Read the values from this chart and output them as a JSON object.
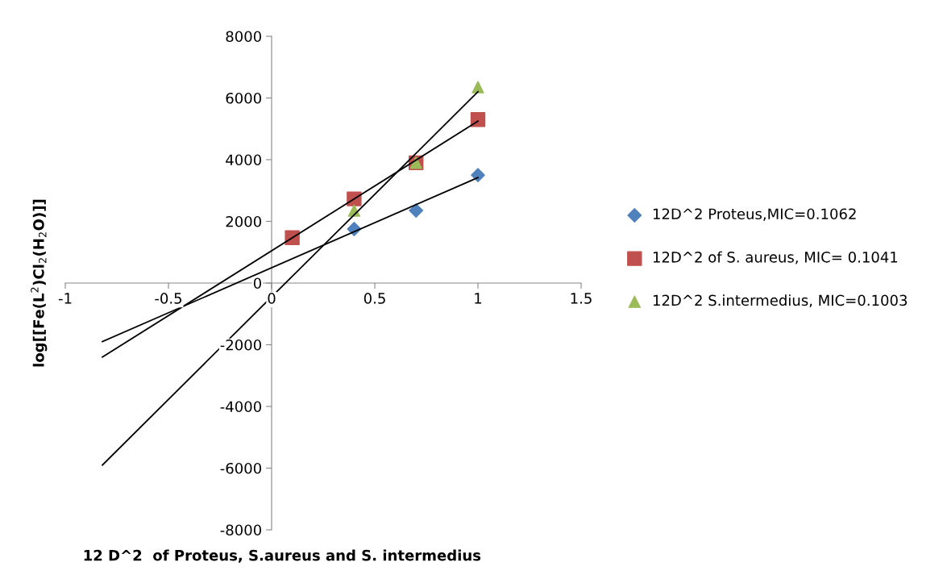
{
  "chart_data": {
    "type": "scatter",
    "xlabel": "12 D^2  of Proteus, S.aureus and S. intermedius",
    "ylabel": "log[[Fe(L$^{2}$)Cl$_{2}$(H$_{2}$O)]]",
    "xlim": [
      -1,
      1.5
    ],
    "xticks": [
      -1,
      -0.5,
      0,
      0.5,
      1,
      1.5
    ],
    "ylim": [
      -8000,
      8000
    ],
    "yticks": [
      -8000,
      -6000,
      -4000,
      -2000,
      0,
      2000,
      4000,
      6000,
      8000
    ],
    "grid": false,
    "legend": "right",
    "series": [
      {
        "name": "12D^2 Proteus,MIC=0.1062",
        "color": "#4f81bd",
        "marker": "diamond",
        "x": [
          0.4,
          0.7,
          1
        ],
        "values": [
          1750,
          2350,
          3500
        ]
      },
      {
        "name": "12D^2 of S. aureus, MIC= 0.1041",
        "color": "#c0504d",
        "marker": "square",
        "x": [
          0.1,
          0.4,
          0.7,
          1
        ],
        "values": [
          1470,
          2730,
          3900,
          5300
        ]
      },
      {
        "name": "12D^2 S.intermedius, MIC=0.1003",
        "color": "#9bbb59",
        "marker": "triangle",
        "x": [
          0.4,
          0.7,
          1
        ],
        "values": [
          2350,
          3900,
          6350
        ]
      },
      {
        "type": "line",
        "color": "#000000",
        "line_style": "solid",
        "marker": "none",
        "x": [
          -0.82,
          1
        ],
        "values": [
          -1900,
          3420
        ]
      },
      {
        "type": "line",
        "color": "#000000",
        "line_style": "solid",
        "marker": "none",
        "x": [
          -0.82,
          1
        ],
        "values": [
          -2400,
          5250
        ]
      },
      {
        "type": "line",
        "color": "#000000",
        "line_style": "solid",
        "marker": "none",
        "x": [
          -0.82,
          1
        ],
        "values": [
          -5900,
          6200
        ]
      }
    ]
  }
}
